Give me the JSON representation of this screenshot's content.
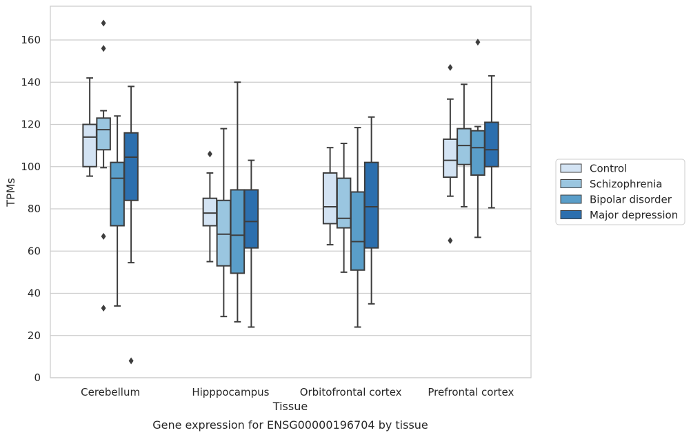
{
  "chart_data": {
    "type": "boxplot",
    "title": "Gene expression for ENSG00000196704 by tissue",
    "xlabel": "Tissue",
    "ylabel": "TPMs",
    "ylim": [
      0,
      176
    ],
    "yticks": [
      0,
      20,
      40,
      60,
      80,
      100,
      120,
      140,
      160
    ],
    "grid": true,
    "legend_position": "right",
    "categories": [
      "Cerebellum",
      "Hipppocampus",
      "Orbitofrontal cortex",
      "Prefrontal cortex"
    ],
    "series": [
      {
        "name": "Control",
        "color": "#d3e3f3",
        "boxes": [
          {
            "whislo": 95.5,
            "q1": 100,
            "med": 114,
            "q3": 120,
            "whishi": 142,
            "fliers": []
          },
          {
            "whislo": 55,
            "q1": 72,
            "med": 78,
            "q3": 85,
            "whishi": 97,
            "fliers": [
              106
            ]
          },
          {
            "whislo": 63,
            "q1": 73,
            "med": 81,
            "q3": 97,
            "whishi": 109,
            "fliers": []
          },
          {
            "whislo": 86,
            "q1": 95,
            "med": 103,
            "q3": 113,
            "whishi": 132,
            "fliers": [
              147,
              65
            ]
          }
        ]
      },
      {
        "name": "Schizophrenia",
        "color": "#9ac6e0",
        "boxes": [
          {
            "whislo": 99.5,
            "q1": 108,
            "med": 117.5,
            "q3": 123,
            "whishi": 126.5,
            "fliers": [
              168,
              156,
              67,
              33
            ]
          },
          {
            "whislo": 29,
            "q1": 53,
            "med": 68,
            "q3": 84,
            "whishi": 118,
            "fliers": []
          },
          {
            "whislo": 50,
            "q1": 71,
            "med": 75.5,
            "q3": 94.5,
            "whishi": 111,
            "fliers": []
          },
          {
            "whislo": 81,
            "q1": 101,
            "med": 110,
            "q3": 118,
            "whishi": 139,
            "fliers": []
          }
        ]
      },
      {
        "name": "Bipolar disorder",
        "color": "#5a9ec9",
        "boxes": [
          {
            "whislo": 34,
            "q1": 72,
            "med": 94.5,
            "q3": 102,
            "whishi": 124,
            "fliers": []
          },
          {
            "whislo": 26.5,
            "q1": 49.5,
            "med": 67.5,
            "q3": 89,
            "whishi": 140,
            "fliers": []
          },
          {
            "whislo": 24,
            "q1": 51,
            "med": 64.5,
            "q3": 88,
            "whishi": 118.5,
            "fliers": []
          },
          {
            "whislo": 66.5,
            "q1": 96,
            "med": 109,
            "q3": 117,
            "whishi": 119,
            "fliers": [
              159
            ]
          }
        ]
      },
      {
        "name": "Major depression",
        "color": "#2c6fae",
        "boxes": [
          {
            "whislo": 54.5,
            "q1": 84,
            "med": 104.5,
            "q3": 116,
            "whishi": 138,
            "fliers": [
              8
            ]
          },
          {
            "whislo": 24,
            "q1": 61.5,
            "med": 74,
            "q3": 89,
            "whishi": 103,
            "fliers": []
          },
          {
            "whislo": 35,
            "q1": 61.5,
            "med": 81,
            "q3": 102,
            "whishi": 123.5,
            "fliers": []
          },
          {
            "whislo": 80.5,
            "q1": 100,
            "med": 108,
            "q3": 121,
            "whishi": 143,
            "fliers": []
          }
        ]
      }
    ]
  }
}
